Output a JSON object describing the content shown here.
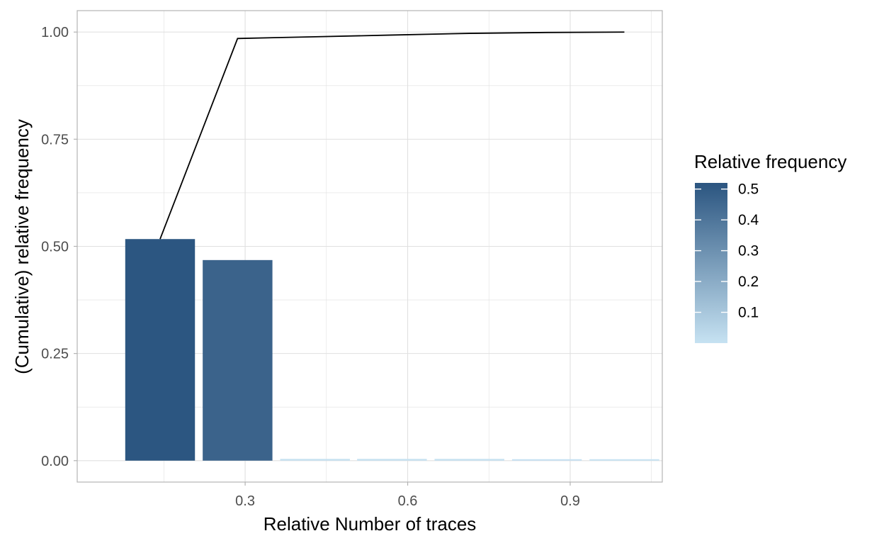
{
  "chart_data": {
    "type": "bar",
    "xlabel": "Relative Number of traces",
    "ylabel": "(Cumulative) relative frequency",
    "x_ticks": [
      0.3,
      0.6,
      0.9
    ],
    "x_tick_labels": [
      "0.3",
      "0.6",
      "0.9"
    ],
    "y_ticks": [
      0,
      0.25,
      0.5,
      0.75,
      1.0
    ],
    "y_tick_labels": [
      "0.00",
      "0.25",
      "0.50",
      "0.75",
      "1.00"
    ],
    "xlim": [
      -0.01,
      1.07
    ],
    "ylim": [
      -0.05,
      1.05
    ],
    "grid": true,
    "bars": {
      "x": [
        0.143,
        0.286,
        0.429,
        0.571,
        0.714,
        0.857,
        1.0
      ],
      "values": [
        0.517,
        0.468,
        0.004,
        0.004,
        0.004,
        0.002,
        0.001
      ]
    },
    "cumulative_line": {
      "x": [
        0.143,
        0.286,
        0.429,
        0.571,
        0.714,
        0.857,
        1.0
      ],
      "values": [
        0.517,
        0.985,
        0.989,
        0.993,
        0.997,
        0.999,
        1.0
      ]
    },
    "legend": {
      "title": "Relative frequency",
      "position": "right",
      "type": "colorbar",
      "range": [
        0,
        0.52
      ],
      "breaks": [
        0.1,
        0.2,
        0.3,
        0.4,
        0.5
      ],
      "break_labels": [
        "0.1",
        "0.2",
        "0.3",
        "0.4",
        "0.5"
      ],
      "low_color": "#c6e2f2",
      "high_color": "#2b5580"
    },
    "colors": {
      "line": "#000000",
      "panel_border": "#b3b3b3",
      "grid": "#e0e0e0",
      "axis_line": "#b3b3b3"
    }
  }
}
